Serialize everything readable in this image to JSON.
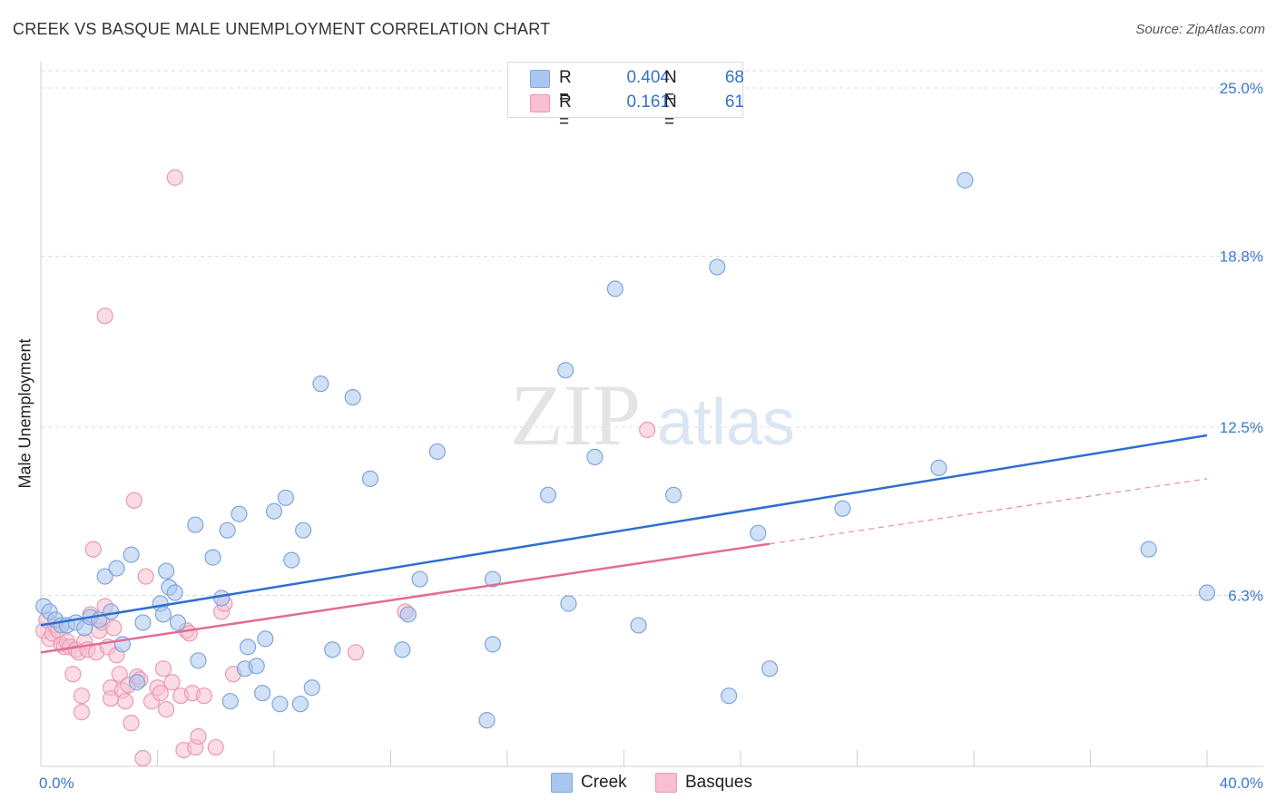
{
  "title": "CREEK VS BASQUE MALE UNEMPLOYMENT CORRELATION CHART",
  "source": "Source: ZipAtlas.com",
  "watermark": {
    "zip": "ZIP",
    "atlas": "atlas"
  },
  "legend_top": [
    {
      "r_label": "R =",
      "r_value": "0.404",
      "n_label": "N =",
      "n_value": "68",
      "color": "#a9c6ef",
      "border": "#7fa6dc"
    },
    {
      "r_label": "R =",
      "r_value": "0.161",
      "n_label": "N =",
      "n_value": "61",
      "color": "#f7bfd0",
      "border": "#e99ab2"
    }
  ],
  "legend_bottom": [
    {
      "label": "Creek",
      "color": "#a9c6ef",
      "border": "#7fa6dc"
    },
    {
      "label": "Basques",
      "color": "#f7bfd0",
      "border": "#e99ab2"
    }
  ],
  "chart_data": {
    "type": "scatter",
    "title": "CREEK VS BASQUE MALE UNEMPLOYMENT CORRELATION CHART",
    "xlabel": "",
    "ylabel": "Male Unemployment",
    "xlim": [
      0,
      40
    ],
    "ylim": [
      0,
      25
    ],
    "x_tick_labels": [
      {
        "value": 0,
        "label": "0.0%"
      },
      {
        "value": 40,
        "label": "40.0%"
      }
    ],
    "y_tick_labels": [
      {
        "value": 6.3,
        "label": "6.3%"
      },
      {
        "value": 12.5,
        "label": "12.5%"
      },
      {
        "value": 18.8,
        "label": "18.8%"
      },
      {
        "value": 25.0,
        "label": "25.0%"
      }
    ],
    "grid": true,
    "legend_position": "top-center",
    "series": [
      {
        "name": "Creek",
        "color": "#7fa6dc",
        "fill": "#a9c6ef",
        "line_color": "#2e6fcf",
        "trend": {
          "x": [
            0,
            40
          ],
          "y": [
            5.2,
            12.2
          ],
          "dashed_from": null
        },
        "points": [
          [
            0.1,
            5.9
          ],
          [
            0.3,
            5.7
          ],
          [
            0.5,
            5.4
          ],
          [
            0.7,
            5.2
          ],
          [
            0.9,
            5.2
          ],
          [
            1.2,
            5.3
          ],
          [
            1.5,
            5.1
          ],
          [
            1.7,
            5.5
          ],
          [
            2.0,
            5.4
          ],
          [
            2.4,
            5.7
          ],
          [
            2.2,
            7.0
          ],
          [
            2.6,
            7.3
          ],
          [
            3.1,
            7.8
          ],
          [
            3.5,
            5.3
          ],
          [
            3.3,
            3.1
          ],
          [
            2.8,
            4.5
          ],
          [
            4.1,
            6.0
          ],
          [
            4.4,
            6.6
          ],
          [
            4.3,
            7.2
          ],
          [
            4.6,
            6.4
          ],
          [
            4.7,
            5.3
          ],
          [
            4.2,
            5.6
          ],
          [
            5.3,
            8.9
          ],
          [
            5.9,
            7.7
          ],
          [
            5.4,
            3.9
          ],
          [
            6.2,
            6.2
          ],
          [
            6.4,
            8.7
          ],
          [
            6.8,
            9.3
          ],
          [
            6.5,
            2.4
          ],
          [
            7.0,
            3.6
          ],
          [
            7.1,
            4.4
          ],
          [
            7.4,
            3.7
          ],
          [
            7.6,
            2.7
          ],
          [
            7.7,
            4.7
          ],
          [
            8.0,
            9.4
          ],
          [
            8.4,
            9.9
          ],
          [
            8.6,
            7.6
          ],
          [
            8.2,
            2.3
          ],
          [
            9.0,
            8.7
          ],
          [
            9.3,
            2.9
          ],
          [
            8.9,
            2.3
          ],
          [
            9.6,
            14.1
          ],
          [
            10.0,
            4.3
          ],
          [
            10.7,
            13.6
          ],
          [
            11.3,
            10.6
          ],
          [
            12.4,
            4.3
          ],
          [
            12.6,
            5.6
          ],
          [
            13.6,
            11.6
          ],
          [
            13.0,
            6.9
          ],
          [
            15.5,
            6.9
          ],
          [
            15.3,
            1.7
          ],
          [
            15.5,
            4.5
          ],
          [
            17.4,
            10.0
          ],
          [
            18.0,
            14.6
          ],
          [
            18.1,
            6.0
          ],
          [
            19.0,
            11.4
          ],
          [
            19.7,
            17.6
          ],
          [
            20.5,
            5.2
          ],
          [
            21.7,
            10.0
          ],
          [
            23.2,
            18.4
          ],
          [
            23.6,
            2.6
          ],
          [
            24.6,
            8.6
          ],
          [
            25.0,
            3.6
          ],
          [
            27.5,
            9.5
          ],
          [
            30.8,
            11.0
          ],
          [
            31.7,
            21.6
          ],
          [
            38.0,
            8.0
          ],
          [
            40.0,
            6.4
          ]
        ]
      },
      {
        "name": "Basques",
        "color": "#e99ab2",
        "fill": "#f7bfd0",
        "line_color": "#e26c95",
        "trend": {
          "x": [
            0,
            40
          ],
          "y": [
            4.2,
            10.6
          ],
          "dashed_from": 25.0
        },
        "points": [
          [
            0.1,
            5.0
          ],
          [
            0.2,
            5.4
          ],
          [
            0.3,
            4.7
          ],
          [
            0.4,
            4.9
          ],
          [
            0.5,
            5.2
          ],
          [
            0.6,
            5.0
          ],
          [
            0.7,
            4.5
          ],
          [
            0.8,
            4.4
          ],
          [
            0.9,
            4.6
          ],
          [
            1.0,
            4.4
          ],
          [
            1.1,
            3.4
          ],
          [
            1.2,
            4.3
          ],
          [
            1.3,
            4.2
          ],
          [
            1.4,
            2.6
          ],
          [
            1.4,
            2.0
          ],
          [
            1.5,
            4.6
          ],
          [
            1.6,
            4.3
          ],
          [
            1.7,
            5.6
          ],
          [
            1.8,
            8.0
          ],
          [
            1.9,
            4.2
          ],
          [
            2.0,
            5.0
          ],
          [
            2.1,
            5.3
          ],
          [
            2.2,
            5.9
          ],
          [
            2.2,
            16.6
          ],
          [
            2.3,
            4.4
          ],
          [
            2.4,
            2.9
          ],
          [
            2.4,
            2.5
          ],
          [
            2.5,
            5.1
          ],
          [
            2.6,
            4.1
          ],
          [
            2.7,
            3.4
          ],
          [
            2.8,
            2.8
          ],
          [
            2.9,
            2.4
          ],
          [
            3.0,
            3.0
          ],
          [
            3.1,
            1.6
          ],
          [
            3.2,
            9.8
          ],
          [
            3.3,
            3.3
          ],
          [
            3.4,
            3.2
          ],
          [
            3.5,
            0.3
          ],
          [
            3.6,
            7.0
          ],
          [
            3.8,
            2.4
          ],
          [
            4.0,
            2.9
          ],
          [
            4.1,
            2.7
          ],
          [
            4.2,
            3.6
          ],
          [
            4.3,
            2.1
          ],
          [
            4.5,
            3.1
          ],
          [
            4.6,
            21.7
          ],
          [
            4.8,
            2.6
          ],
          [
            4.9,
            0.6
          ],
          [
            5.0,
            5.0
          ],
          [
            5.1,
            4.9
          ],
          [
            5.2,
            2.7
          ],
          [
            5.3,
            0.7
          ],
          [
            5.4,
            1.1
          ],
          [
            5.6,
            2.6
          ],
          [
            6.0,
            0.7
          ],
          [
            6.2,
            5.7
          ],
          [
            6.3,
            6.0
          ],
          [
            6.6,
            3.4
          ],
          [
            10.8,
            4.2
          ],
          [
            12.5,
            5.7
          ],
          [
            20.8,
            12.4
          ]
        ]
      }
    ]
  }
}
